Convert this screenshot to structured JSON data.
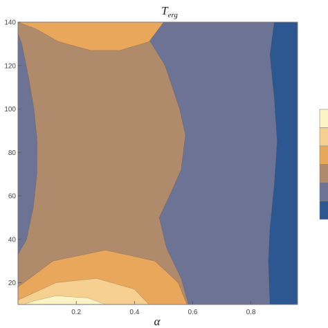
{
  "chart_data": {
    "type": "contour",
    "title": "T",
    "title_subscript": "erg",
    "xlabel": "α",
    "ylabel": "",
    "xlim": [
      0.0,
      0.96
    ],
    "ylim": [
      10,
      140
    ],
    "xticks": [
      {
        "value": 0.2,
        "label": "0.2"
      },
      {
        "value": 0.4,
        "label": "0.4"
      },
      {
        "value": 0.6,
        "label": "0.6"
      },
      {
        "value": 0.8,
        "label": "0.8"
      }
    ],
    "yticks": [
      {
        "value": 20,
        "label": "20"
      },
      {
        "value": 40,
        "label": "40"
      },
      {
        "value": 60,
        "label": "60"
      },
      {
        "value": 80,
        "label": "80"
      },
      {
        "value": 100,
        "label": "100"
      },
      {
        "value": 120,
        "label": "120"
      },
      {
        "value": 140,
        "label": "140"
      }
    ],
    "levels": [
      {
        "level": 1,
        "color": "#fdf3c4"
      },
      {
        "level": 2,
        "color": "#f6d091"
      },
      {
        "level": 3,
        "color": "#e9a75c"
      },
      {
        "level": 4,
        "color": "#b08b6b"
      },
      {
        "level": 5,
        "color": "#6d7394"
      },
      {
        "level": 6,
        "color": "#2c5790"
      }
    ],
    "regions": [
      {
        "level": 4,
        "points": [
          [
            0.0,
            10
          ],
          [
            0.96,
            10
          ],
          [
            0.96,
            140
          ],
          [
            0.0,
            140
          ]
        ]
      },
      {
        "level": 5,
        "points": [
          [
            0.0,
            33
          ],
          [
            0.03,
            40
          ],
          [
            0.053,
            55
          ],
          [
            0.065,
            70
          ],
          [
            0.066,
            85
          ],
          [
            0.055,
            100
          ],
          [
            0.036,
            115
          ],
          [
            0.013,
            130
          ],
          [
            0.0,
            135
          ]
        ]
      },
      {
        "level": 5,
        "points": [
          [
            0.96,
            10
          ],
          [
            0.96,
            140
          ],
          [
            0.39,
            140
          ],
          [
            0.45,
            132
          ],
          [
            0.505,
            120
          ],
          [
            0.555,
            100
          ],
          [
            0.575,
            88
          ],
          [
            0.56,
            72
          ],
          [
            0.52,
            60
          ],
          [
            0.485,
            50
          ],
          [
            0.51,
            36
          ],
          [
            0.56,
            22
          ],
          [
            0.585,
            10
          ]
        ]
      },
      {
        "level": 6,
        "points": [
          [
            0.96,
            10
          ],
          [
            0.96,
            140
          ],
          [
            0.88,
            140
          ],
          [
            0.865,
            125
          ],
          [
            0.88,
            105
          ],
          [
            0.89,
            85
          ],
          [
            0.88,
            65
          ],
          [
            0.865,
            45
          ],
          [
            0.86,
            30
          ],
          [
            0.865,
            10
          ]
        ]
      },
      {
        "level": 3,
        "points": [
          [
            0.0,
            10
          ],
          [
            0.58,
            10
          ],
          [
            0.55,
            20
          ],
          [
            0.47,
            30
          ],
          [
            0.3,
            35
          ],
          [
            0.12,
            30
          ],
          [
            0.0,
            18
          ]
        ]
      },
      {
        "level": 2,
        "points": [
          [
            0.0,
            10
          ],
          [
            0.45,
            10
          ],
          [
            0.4,
            17
          ],
          [
            0.27,
            22
          ],
          [
            0.13,
            20
          ],
          [
            0.0,
            12
          ]
        ]
      },
      {
        "level": 1,
        "points": [
          [
            0.02,
            10
          ],
          [
            0.3,
            10
          ],
          [
            0.24,
            13
          ],
          [
            0.13,
            14
          ],
          [
            0.05,
            11.5
          ]
        ]
      },
      {
        "level": 3,
        "points": [
          [
            0.0,
            140
          ],
          [
            0.5,
            140
          ],
          [
            0.45,
            131
          ],
          [
            0.35,
            127
          ],
          [
            0.25,
            127
          ],
          [
            0.14,
            131
          ],
          [
            0.06,
            137
          ],
          [
            0.0,
            140
          ]
        ]
      }
    ],
    "legend": {
      "placement": "right",
      "swatches": [
        1,
        2,
        3,
        4,
        5,
        6
      ]
    }
  }
}
